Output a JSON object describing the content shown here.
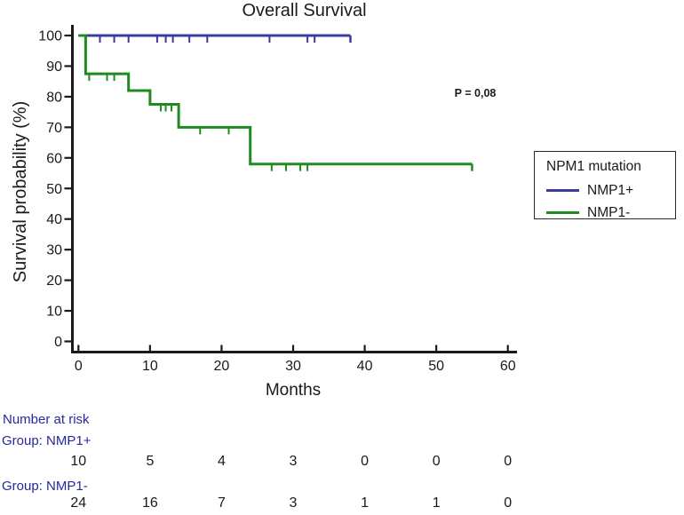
{
  "chart_data": {
    "type": "line",
    "subtype": "kaplan-meier-step",
    "title": "Overall Survival",
    "xlabel": "Months",
    "ylabel": "Survival probability (%)",
    "xlim": [
      0,
      60
    ],
    "ylim": [
      0,
      100
    ],
    "xticks": [
      0,
      10,
      20,
      30,
      40,
      50,
      60
    ],
    "yticks": [
      0,
      10,
      20,
      30,
      40,
      50,
      60,
      70,
      80,
      90,
      100
    ],
    "grid": false,
    "legend_position": "right-outside",
    "annotation": "P = 0,08",
    "series": [
      {
        "name": "NMP1+",
        "color": "#3b3b9d",
        "steps": [
          [
            0,
            100
          ],
          [
            38,
            100
          ]
        ],
        "censor_marks": [
          [
            3,
            100
          ],
          [
            5,
            100
          ],
          [
            7,
            100
          ],
          [
            11,
            100
          ],
          [
            12.2,
            100
          ],
          [
            13.2,
            100
          ],
          [
            15.5,
            100
          ],
          [
            18,
            100
          ],
          [
            26.7,
            100
          ],
          [
            32,
            100
          ],
          [
            33,
            100
          ]
        ],
        "end_censor": true
      },
      {
        "name": "NMP1-",
        "color": "#1f8b1f",
        "steps": [
          [
            0,
            100
          ],
          [
            1,
            100
          ],
          [
            1,
            87.5
          ],
          [
            7,
            87.5
          ],
          [
            7,
            82
          ],
          [
            10,
            82
          ],
          [
            10,
            77.5
          ],
          [
            14,
            77.5
          ],
          [
            14,
            70
          ],
          [
            24,
            70
          ],
          [
            24,
            58
          ],
          [
            55,
            58
          ]
        ],
        "censor_marks": [
          [
            1.5,
            87.5
          ],
          [
            4,
            87.5
          ],
          [
            5,
            87.5
          ],
          [
            11.5,
            77.5
          ],
          [
            12.2,
            77.5
          ],
          [
            13,
            77.5
          ],
          [
            17,
            70
          ],
          [
            21,
            70
          ],
          [
            27,
            58
          ],
          [
            29,
            58
          ],
          [
            31,
            58
          ],
          [
            32,
            58
          ]
        ],
        "end_censor": true
      }
    ]
  },
  "legend": {
    "title": "NPM1 mutation",
    "entries": [
      {
        "label": "NMP1+",
        "color": "#3b3b9d"
      },
      {
        "label": "NMP1-",
        "color": "#1f8b1f"
      }
    ]
  },
  "at_risk": {
    "header": "Number at risk",
    "times": [
      0,
      10,
      20,
      30,
      40,
      50,
      60
    ],
    "groups": [
      {
        "label": "Group: NMP1+",
        "counts": [
          "10",
          "5",
          "4",
          "3",
          "0",
          "0",
          "0"
        ]
      },
      {
        "label": "Group: NMP1-",
        "counts": [
          "24",
          "16",
          "7",
          "3",
          "1",
          "1",
          "0"
        ]
      }
    ]
  },
  "colors": {
    "axis": "#1a1a1a",
    "risk_label_blue": "#2828a0"
  }
}
